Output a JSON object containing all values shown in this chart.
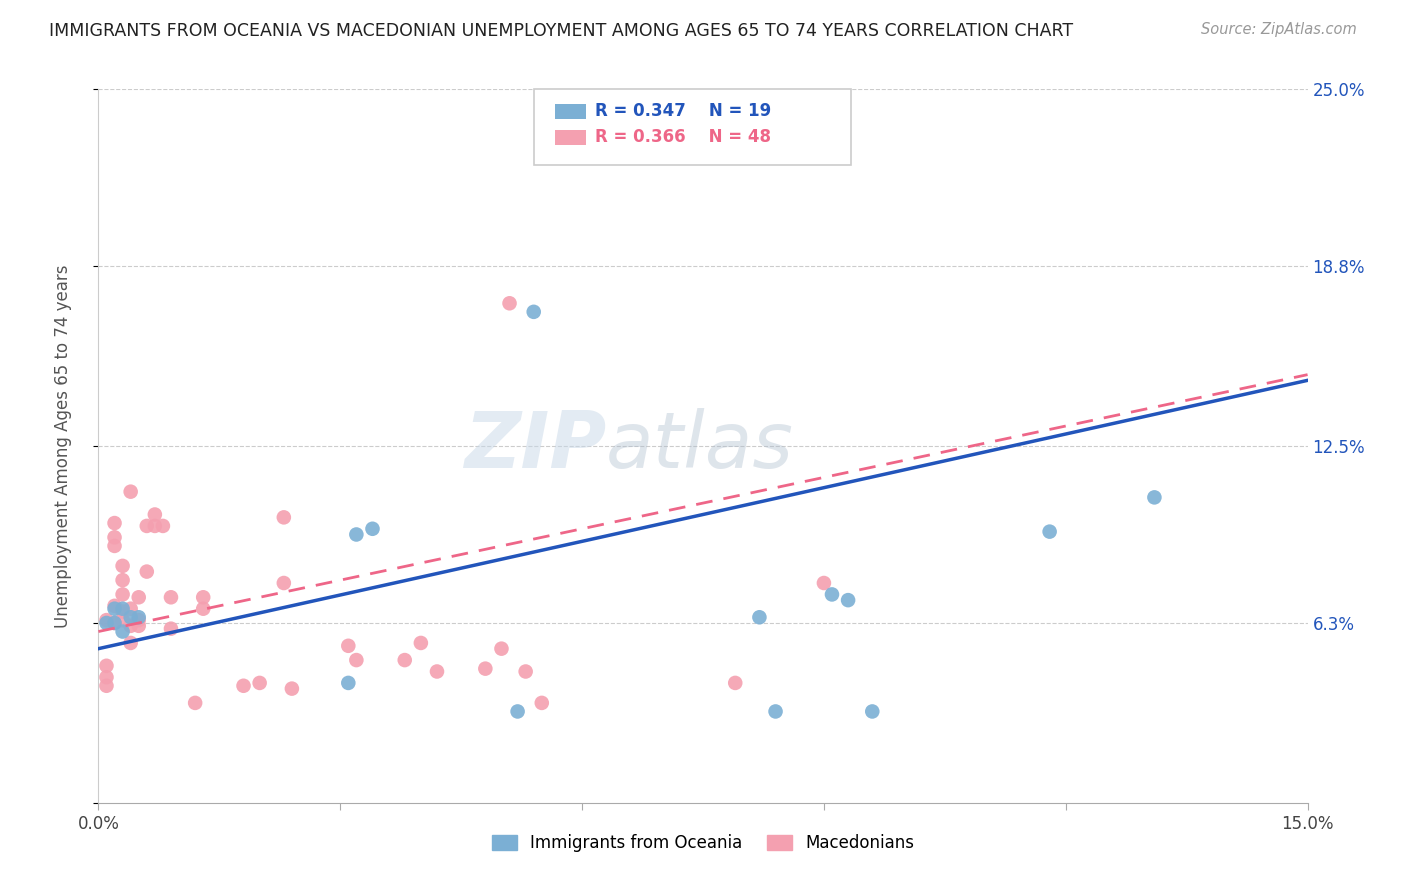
{
  "title": "IMMIGRANTS FROM OCEANIA VS MACEDONIAN UNEMPLOYMENT AMONG AGES 65 TO 74 YEARS CORRELATION CHART",
  "source": "Source: ZipAtlas.com",
  "ylabel": "Unemployment Among Ages 65 to 74 years",
  "xlabel_blue": "Immigrants from Oceania",
  "xlabel_pink": "Macedonians",
  "xlim": [
    0.0,
    0.15
  ],
  "ylim": [
    0.0,
    0.25
  ],
  "yticks": [
    0.0,
    0.063,
    0.125,
    0.188,
    0.25
  ],
  "xticks": [
    0.0,
    0.03,
    0.06,
    0.09,
    0.12,
    0.15
  ],
  "xtick_labels": [
    "0.0%",
    "",
    "",
    "",
    "",
    "15.0%"
  ],
  "legend_blue_R": "R = 0.347",
  "legend_blue_N": "N = 19",
  "legend_pink_R": "R = 0.366",
  "legend_pink_N": "N = 48",
  "blue_color": "#7BAFD4",
  "pink_color": "#F4A0B0",
  "blue_line_color": "#2255BB",
  "pink_line_color": "#EE6688",
  "watermark_color": "#C8D8E8",
  "blue_x": [
    0.001,
    0.002,
    0.002,
    0.003,
    0.003,
    0.004,
    0.005,
    0.031,
    0.032,
    0.034,
    0.052,
    0.054,
    0.082,
    0.084,
    0.091,
    0.093,
    0.096,
    0.118,
    0.131
  ],
  "blue_y": [
    0.063,
    0.063,
    0.068,
    0.06,
    0.068,
    0.065,
    0.065,
    0.042,
    0.094,
    0.096,
    0.032,
    0.172,
    0.065,
    0.032,
    0.073,
    0.071,
    0.032,
    0.095,
    0.107
  ],
  "pink_x": [
    0.001,
    0.001,
    0.001,
    0.001,
    0.002,
    0.002,
    0.002,
    0.002,
    0.002,
    0.003,
    0.003,
    0.003,
    0.003,
    0.003,
    0.004,
    0.004,
    0.004,
    0.004,
    0.005,
    0.005,
    0.005,
    0.006,
    0.006,
    0.007,
    0.007,
    0.008,
    0.009,
    0.009,
    0.012,
    0.013,
    0.013,
    0.018,
    0.02,
    0.023,
    0.023,
    0.024,
    0.031,
    0.032,
    0.038,
    0.04,
    0.042,
    0.048,
    0.05,
    0.051,
    0.053,
    0.055,
    0.079,
    0.09
  ],
  "pink_y": [
    0.041,
    0.044,
    0.048,
    0.064,
    0.063,
    0.069,
    0.09,
    0.093,
    0.098,
    0.064,
    0.067,
    0.073,
    0.078,
    0.083,
    0.056,
    0.062,
    0.068,
    0.109,
    0.062,
    0.064,
    0.072,
    0.081,
    0.097,
    0.097,
    0.101,
    0.097,
    0.061,
    0.072,
    0.035,
    0.068,
    0.072,
    0.041,
    0.042,
    0.1,
    0.077,
    0.04,
    0.055,
    0.05,
    0.05,
    0.056,
    0.046,
    0.047,
    0.054,
    0.175,
    0.046,
    0.035,
    0.042,
    0.077
  ],
  "blue_line_x0": 0.0,
  "blue_line_y0": 0.054,
  "blue_line_x1": 0.15,
  "blue_line_y1": 0.148,
  "pink_line_x0": 0.0,
  "pink_line_y0": 0.06,
  "pink_line_x1": 0.15,
  "pink_line_y1": 0.15
}
